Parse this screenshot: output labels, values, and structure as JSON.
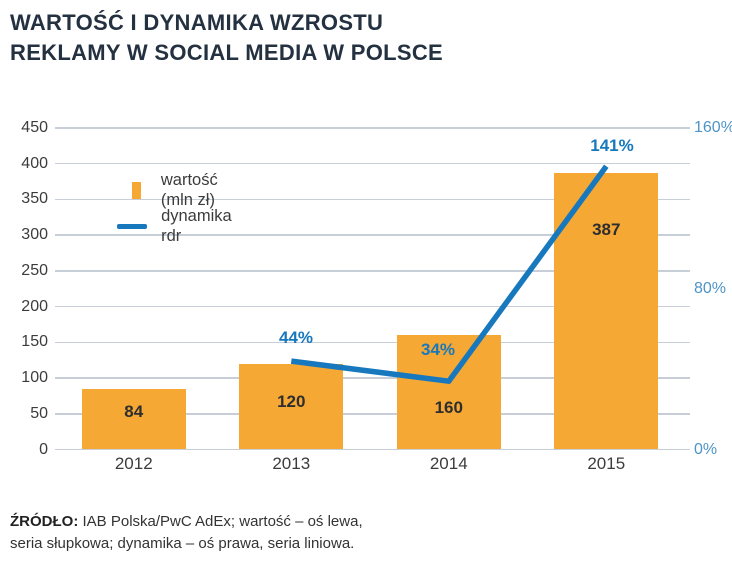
{
  "title": {
    "line1": "WARTOŚĆ I DYNAMIKA WZROSTU",
    "line2": "REKLAMY W SOCIAL MEDIA W POLSCE",
    "color": "#243141"
  },
  "legend": {
    "items": [
      {
        "label": "wartość (mln zł)",
        "swatch": "square",
        "color": "#F5A834"
      },
      {
        "label": "dynamika rdr",
        "swatch": "line",
        "color": "#1778BE"
      }
    ]
  },
  "chart_data": {
    "type": "bar+line",
    "categories": [
      "2012",
      "2013",
      "2014",
      "2015"
    ],
    "series": [
      {
        "name": "wartość (mln zł)",
        "type": "bar",
        "axis": "left",
        "color": "#F5A834",
        "values": [
          84,
          120,
          160,
          387
        ],
        "data_labels": [
          "84",
          "120",
          "160",
          "387"
        ]
      },
      {
        "name": "dynamika rdr",
        "type": "line",
        "axis": "right",
        "color": "#1778BE",
        "values": [
          null,
          44,
          34,
          141
        ],
        "data_labels": [
          "",
          "44%",
          "34%",
          "141%"
        ]
      }
    ],
    "left_axis": {
      "range": [
        0,
        450
      ],
      "ticks": [
        450,
        400,
        350,
        300,
        250,
        200,
        150,
        100,
        50,
        0
      ],
      "tick_color": "#3C3C3C"
    },
    "right_axis": {
      "range": [
        0,
        160
      ],
      "ticks": [
        {
          "value": 160,
          "label": "160%"
        },
        {
          "value": 80,
          "label": "80%"
        },
        {
          "value": 0,
          "label": "0%"
        }
      ],
      "tick_color": "#4E94C7"
    },
    "grid": {
      "visible": true,
      "color": "#C7CED7"
    },
    "legend_position": "inside-top-left",
    "title": "WARTOŚĆ I DYNAMIKA WZROSTU REKLAMY W SOCIAL MEDIA W POLSCE"
  },
  "source": {
    "label": "ŹRÓDŁO:",
    "line1": "IAB Polska/PwC AdEx; wartość – oś lewa,",
    "line2": "seria słupkowa; dynamika – oś prawa, seria liniowa."
  }
}
